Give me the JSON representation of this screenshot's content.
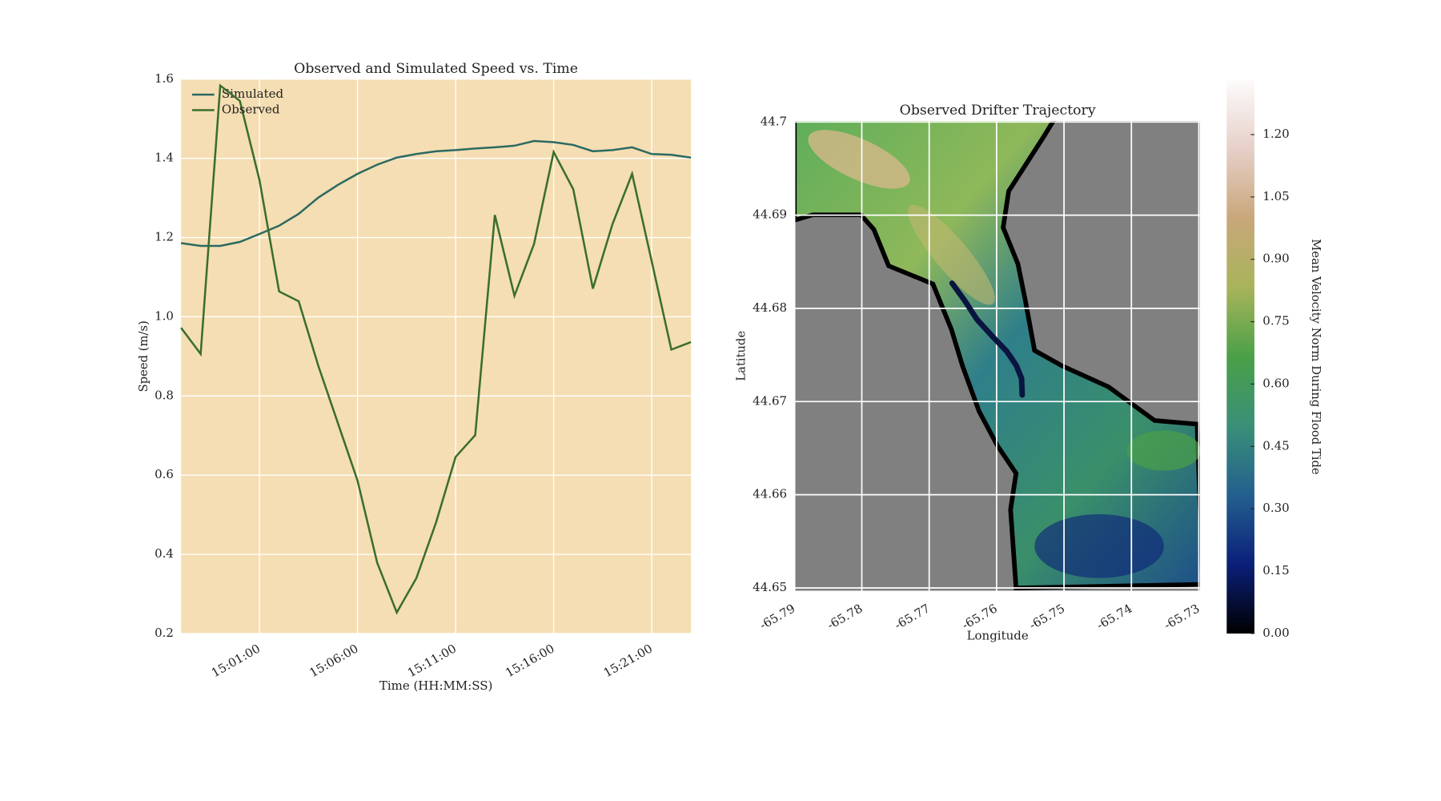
{
  "chart_data": [
    {
      "type": "line",
      "title": "Observed and Simulated Speed vs. Time",
      "xlabel": "Time (HH:MM:SS)",
      "ylabel": "Speed (m/s)",
      "x": [
        "14:57:00",
        "14:58:00",
        "14:59:00",
        "15:00:00",
        "15:01:00",
        "15:02:00",
        "15:03:00",
        "15:04:00",
        "15:05:00",
        "15:06:00",
        "15:07:00",
        "15:08:00",
        "15:09:00",
        "15:10:00",
        "15:11:00",
        "15:12:00",
        "15:13:00",
        "15:14:00",
        "15:15:00",
        "15:16:00",
        "15:17:00",
        "15:18:00",
        "15:19:00",
        "15:20:00",
        "15:21:00",
        "15:22:00",
        "15:23:00"
      ],
      "series": [
        {
          "name": "Simulated",
          "color": "#2b6a62",
          "values": [
            1.186,
            1.179,
            1.179,
            1.189,
            1.209,
            1.23,
            1.26,
            1.301,
            1.333,
            1.361,
            1.384,
            1.402,
            1.411,
            1.418,
            1.421,
            1.425,
            1.428,
            1.432,
            1.444,
            1.441,
            1.434,
            1.418,
            1.421,
            1.428,
            1.411,
            1.409,
            1.402
          ]
        },
        {
          "name": "Observed",
          "color": "#3a6e2c",
          "values": [
            0.972,
            0.906,
            1.584,
            1.545,
            1.345,
            1.064,
            1.039,
            0.876,
            0.731,
            0.586,
            0.379,
            0.253,
            0.34,
            0.48,
            0.646,
            0.701,
            1.257,
            1.053,
            1.184,
            1.416,
            1.322,
            1.071,
            1.234,
            1.361,
            1.14,
            0.917,
            0.936
          ]
        }
      ],
      "xlim": [
        "14:57:00",
        "15:23:00"
      ],
      "xticks": [
        "15:01:00",
        "15:06:00",
        "15:11:00",
        "15:16:00",
        "15:21:00"
      ],
      "ylim": [
        0.2,
        1.6
      ],
      "yticks": [
        0.2,
        0.4,
        0.6,
        0.8,
        {
          "value": 1.0,
          "label": "1.0"
        },
        1.2,
        1.4,
        1.6
      ],
      "grid": true,
      "background": "#f5deb3",
      "legend": "upper left"
    },
    {
      "type": "map",
      "title": "Observed Drifter Trajectory",
      "xlabel": "Longitude",
      "ylabel": "Latitude",
      "x": [
        -65.7666,
        -65.7647,
        -65.7629,
        -65.7605,
        -65.7585,
        -65.7571,
        -65.7563,
        -65.7562
      ],
      "y": [
        44.6827,
        44.6808,
        44.6788,
        44.6769,
        44.6754,
        44.6739,
        44.6725,
        44.6707
      ],
      "color": "#0a1440",
      "xlim": [
        -65.79,
        -65.7297
      ],
      "xticks": [
        -65.79,
        -65.78,
        -65.77,
        -65.76,
        -65.75,
        -65.74,
        -65.73
      ],
      "ylim": [
        44.6496,
        44.7002
      ],
      "yticks": [
        44.65,
        44.66,
        44.67,
        44.68,
        44.69,
        44.7
      ],
      "grid": true,
      "background": "#808080",
      "colorbar": {
        "label": "Mean Velocity Norm During Flood Tide",
        "lim": [
          0,
          1.331
        ],
        "ticks": [
          {
            "value": 0,
            "label": "0.00"
          },
          0.15,
          {
            "value": 0.3,
            "label": "0.30"
          },
          0.45,
          {
            "value": 0.6,
            "label": "0.60"
          },
          0.75,
          {
            "value": 0.9,
            "label": "0.90"
          },
          1.05,
          {
            "value": 1.2,
            "label": "1.20"
          }
        ],
        "colors": [
          "#000000",
          "#0b1f7a",
          "#23608e",
          "#3a8f78",
          "#4aa048",
          "#a8b45a",
          "#c9a77a",
          "#e6cfc8",
          "#fdfbfb"
        ]
      }
    }
  ]
}
